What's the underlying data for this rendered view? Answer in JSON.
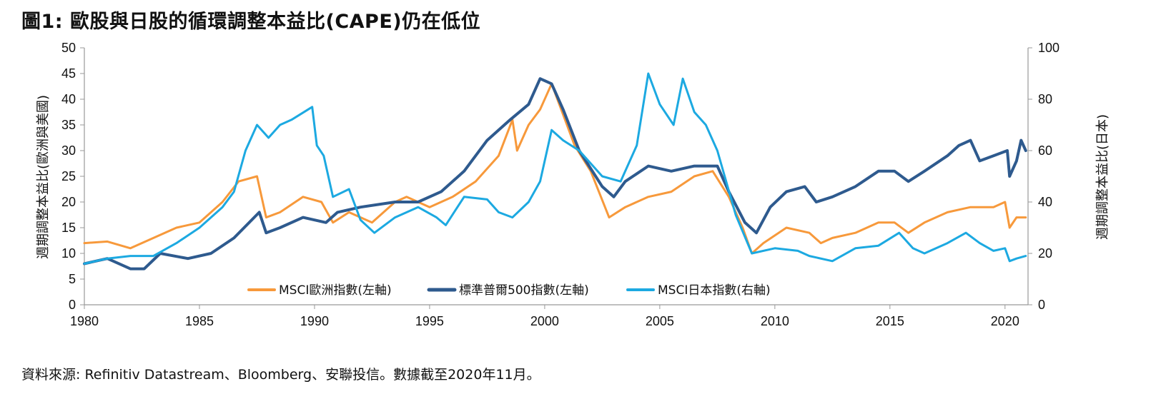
{
  "title": "圖1: 歐股與日股的循環調整本益比(CAPE)仍在低位",
  "source": "資料來源: Refinitiv Datastream、Bloomberg、安聯投信。數據截至2020年11月。",
  "colors": {
    "europe": "#F7993B",
    "us": "#2E5A8E",
    "japan": "#1CA9E1",
    "axis": "#999999",
    "text": "#111111"
  },
  "chart_data": {
    "type": "line",
    "title": "圖1: 歐股與日股的循環調整本益比(CAPE)仍在低位",
    "xlim": [
      1980,
      2021
    ],
    "x_ticks": [
      1980,
      1985,
      1990,
      1995,
      2000,
      2005,
      2010,
      2015,
      2020
    ],
    "ylabel_left": "週期調整本益比(歐洲與美國)",
    "ylabel_right": "週期調整本益比(日本)",
    "ylim_left": [
      0,
      50
    ],
    "ylim_right": [
      0,
      100
    ],
    "y_ticks_left": [
      0,
      5,
      10,
      15,
      20,
      25,
      30,
      35,
      40,
      45,
      50
    ],
    "y_ticks_right": [
      0,
      20,
      40,
      60,
      80,
      100
    ],
    "legend_position": "bottom-center",
    "grid": false,
    "series": [
      {
        "name": "MSCI歐洲指數(左軸)",
        "axis": "left",
        "points": [
          [
            1980,
            12
          ],
          [
            1981,
            12.3
          ],
          [
            1982,
            11
          ],
          [
            1983,
            13
          ],
          [
            1984,
            15
          ],
          [
            1985,
            16
          ],
          [
            1986,
            20
          ],
          [
            1986.7,
            24
          ],
          [
            1987.5,
            25
          ],
          [
            1987.9,
            17
          ],
          [
            1988.5,
            18
          ],
          [
            1989.5,
            21
          ],
          [
            1990.3,
            20
          ],
          [
            1990.8,
            16
          ],
          [
            1991.5,
            18
          ],
          [
            1992.5,
            16
          ],
          [
            1993.5,
            20
          ],
          [
            1994,
            21
          ],
          [
            1995,
            19
          ],
          [
            1996,
            21
          ],
          [
            1997,
            24
          ],
          [
            1998,
            29
          ],
          [
            1998.6,
            36
          ],
          [
            1998.8,
            30
          ],
          [
            1999.3,
            35
          ],
          [
            1999.8,
            38
          ],
          [
            2000.3,
            43
          ],
          [
            2000.8,
            37
          ],
          [
            2001.3,
            31
          ],
          [
            2002,
            26
          ],
          [
            2002.8,
            17
          ],
          [
            2003.5,
            19
          ],
          [
            2004.5,
            21
          ],
          [
            2005.5,
            22
          ],
          [
            2006.5,
            25
          ],
          [
            2007.3,
            26
          ],
          [
            2008,
            21
          ],
          [
            2008.6,
            15
          ],
          [
            2009,
            10
          ],
          [
            2009.5,
            12
          ],
          [
            2010.5,
            15
          ],
          [
            2011.5,
            14
          ],
          [
            2012,
            12
          ],
          [
            2012.5,
            13
          ],
          [
            2013.5,
            14
          ],
          [
            2014.5,
            16
          ],
          [
            2015.2,
            16
          ],
          [
            2015.8,
            14
          ],
          [
            2016.5,
            16
          ],
          [
            2017.5,
            18
          ],
          [
            2018.5,
            19
          ],
          [
            2019.5,
            19
          ],
          [
            2020,
            20
          ],
          [
            2020.2,
            15
          ],
          [
            2020.5,
            17
          ],
          [
            2020.9,
            17
          ]
        ]
      },
      {
        "name": "標準普爾500指數(左軸)",
        "axis": "left",
        "points": [
          [
            1980,
            8
          ],
          [
            1981,
            9
          ],
          [
            1982,
            7
          ],
          [
            1982.6,
            7
          ],
          [
            1983.3,
            10
          ],
          [
            1984.5,
            9
          ],
          [
            1985.5,
            10
          ],
          [
            1986.5,
            13
          ],
          [
            1987.6,
            18
          ],
          [
            1987.9,
            14
          ],
          [
            1988.5,
            15
          ],
          [
            1989.5,
            17
          ],
          [
            1990.5,
            16
          ],
          [
            1991,
            18
          ],
          [
            1992,
            19
          ],
          [
            1993.5,
            20
          ],
          [
            1994.5,
            20
          ],
          [
            1995.5,
            22
          ],
          [
            1996.5,
            26
          ],
          [
            1997.5,
            32
          ],
          [
            1998.5,
            36
          ],
          [
            1999.3,
            39
          ],
          [
            1999.8,
            44
          ],
          [
            2000.3,
            43
          ],
          [
            2000.8,
            38
          ],
          [
            2001.5,
            30
          ],
          [
            2002.5,
            23
          ],
          [
            2003,
            21
          ],
          [
            2003.5,
            24
          ],
          [
            2004.5,
            27
          ],
          [
            2005.5,
            26
          ],
          [
            2006.5,
            27
          ],
          [
            2007.5,
            27
          ],
          [
            2008,
            22
          ],
          [
            2008.7,
            16
          ],
          [
            2009.2,
            14
          ],
          [
            2009.8,
            19
          ],
          [
            2010.5,
            22
          ],
          [
            2011.3,
            23
          ],
          [
            2011.8,
            20
          ],
          [
            2012.5,
            21
          ],
          [
            2013.5,
            23
          ],
          [
            2014.5,
            26
          ],
          [
            2015.2,
            26
          ],
          [
            2015.8,
            24
          ],
          [
            2016.5,
            26
          ],
          [
            2017.5,
            29
          ],
          [
            2018,
            31
          ],
          [
            2018.5,
            32
          ],
          [
            2018.9,
            28
          ],
          [
            2019.5,
            29
          ],
          [
            2020.1,
            30
          ],
          [
            2020.2,
            25
          ],
          [
            2020.5,
            28
          ],
          [
            2020.7,
            32
          ],
          [
            2020.9,
            30
          ]
        ]
      },
      {
        "name": "MSCI日本指數(右軸)",
        "axis": "right",
        "points": [
          [
            1980,
            16
          ],
          [
            1981,
            18
          ],
          [
            1982,
            19
          ],
          [
            1983,
            19
          ],
          [
            1984,
            24
          ],
          [
            1985,
            30
          ],
          [
            1986,
            38
          ],
          [
            1986.5,
            44
          ],
          [
            1987,
            60
          ],
          [
            1987.5,
            70
          ],
          [
            1988,
            65
          ],
          [
            1988.5,
            70
          ],
          [
            1989,
            72
          ],
          [
            1989.9,
            77
          ],
          [
            1990.1,
            62
          ],
          [
            1990.4,
            58
          ],
          [
            1990.8,
            42
          ],
          [
            1991.5,
            45
          ],
          [
            1992,
            33
          ],
          [
            1992.6,
            28
          ],
          [
            1993.5,
            34
          ],
          [
            1994.5,
            38
          ],
          [
            1995.3,
            34
          ],
          [
            1995.7,
            31
          ],
          [
            1996.5,
            42
          ],
          [
            1997.5,
            41
          ],
          [
            1998,
            36
          ],
          [
            1998.6,
            34
          ],
          [
            1999.3,
            40
          ],
          [
            1999.8,
            48
          ],
          [
            2000.3,
            68
          ],
          [
            2000.8,
            64
          ],
          [
            2001.5,
            60
          ],
          [
            2002.5,
            50
          ],
          [
            2003.3,
            48
          ],
          [
            2004,
            62
          ],
          [
            2004.5,
            90
          ],
          [
            2005,
            78
          ],
          [
            2005.6,
            70
          ],
          [
            2006,
            88
          ],
          [
            2006.5,
            75
          ],
          [
            2007,
            70
          ],
          [
            2007.5,
            60
          ],
          [
            2008.3,
            35
          ],
          [
            2009,
            20
          ],
          [
            2010,
            22
          ],
          [
            2011,
            21
          ],
          [
            2011.5,
            19
          ],
          [
            2012.5,
            17
          ],
          [
            2013.5,
            22
          ],
          [
            2014.5,
            23
          ],
          [
            2015.4,
            28
          ],
          [
            2016,
            22
          ],
          [
            2016.5,
            20
          ],
          [
            2017.5,
            24
          ],
          [
            2018.3,
            28
          ],
          [
            2018.9,
            24
          ],
          [
            2019.5,
            21
          ],
          [
            2020,
            22
          ],
          [
            2020.2,
            17
          ],
          [
            2020.5,
            18
          ],
          [
            2020.9,
            19
          ]
        ]
      }
    ]
  }
}
